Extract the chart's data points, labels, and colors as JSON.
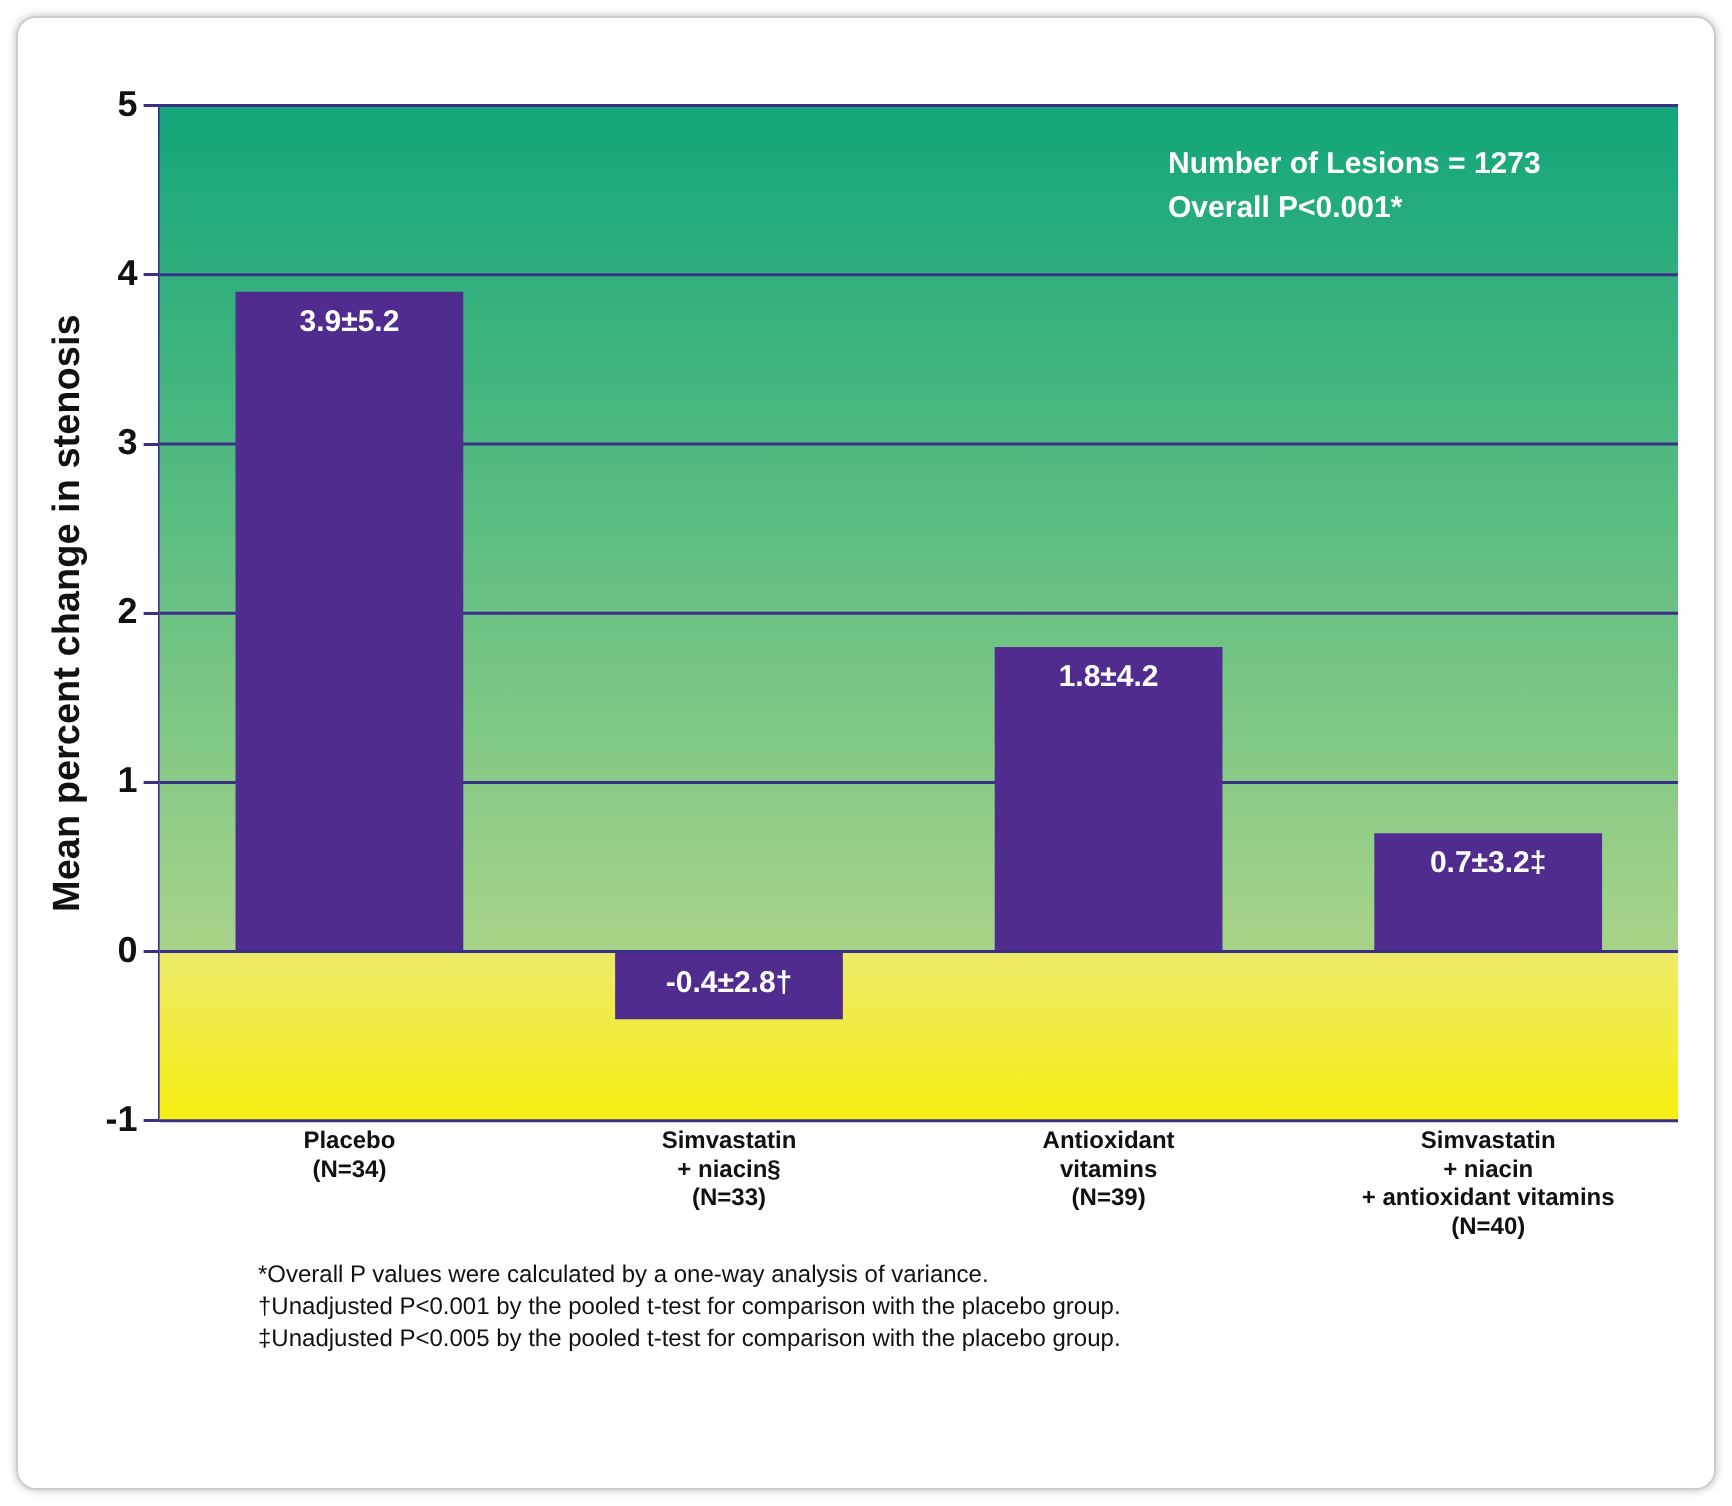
{
  "chart_data": {
    "type": "bar",
    "ylabel": "Mean percent change in stenosis",
    "categories": [
      "Placebo\n(N=34)",
      "Simvastatin\n+ niacin§\n(N=33)",
      "Antioxidant\nvitamins\n(N=39)",
      "Simvastatin\n+ niacin\n+ antioxidant vitamins\n(N=40)"
    ],
    "values": [
      3.9,
      -0.4,
      1.8,
      0.7
    ],
    "color": "#4f2c8e",
    "value_labels": [
      "3.9±5.2",
      "-0.4±2.8†",
      "1.8±4.2",
      "0.7±3.2‡"
    ],
    "bands": [
      {
        "axis": "y",
        "from": 0,
        "to": 5,
        "color": "#12a67a"
      },
      {
        "axis": "y",
        "from": -1,
        "to": 0,
        "color": "#f7ee10"
      }
    ],
    "ylim": [
      -1,
      5
    ],
    "yticks": [
      -1,
      0,
      1,
      2,
      3,
      4,
      5
    ],
    "grid": "y",
    "legend": false,
    "annotations": [
      "Number of Lesions = 1273",
      "Overall P<0.001*",
      "*Overall P values were calculated by a one-way analysis of variance.",
      "†Unadjusted P<0.001 by the pooled t-test for comparison with the placebo group.",
      "‡Unadjusted P<0.005 by the pooled t-test for comparison with the placebo group."
    ]
  }
}
